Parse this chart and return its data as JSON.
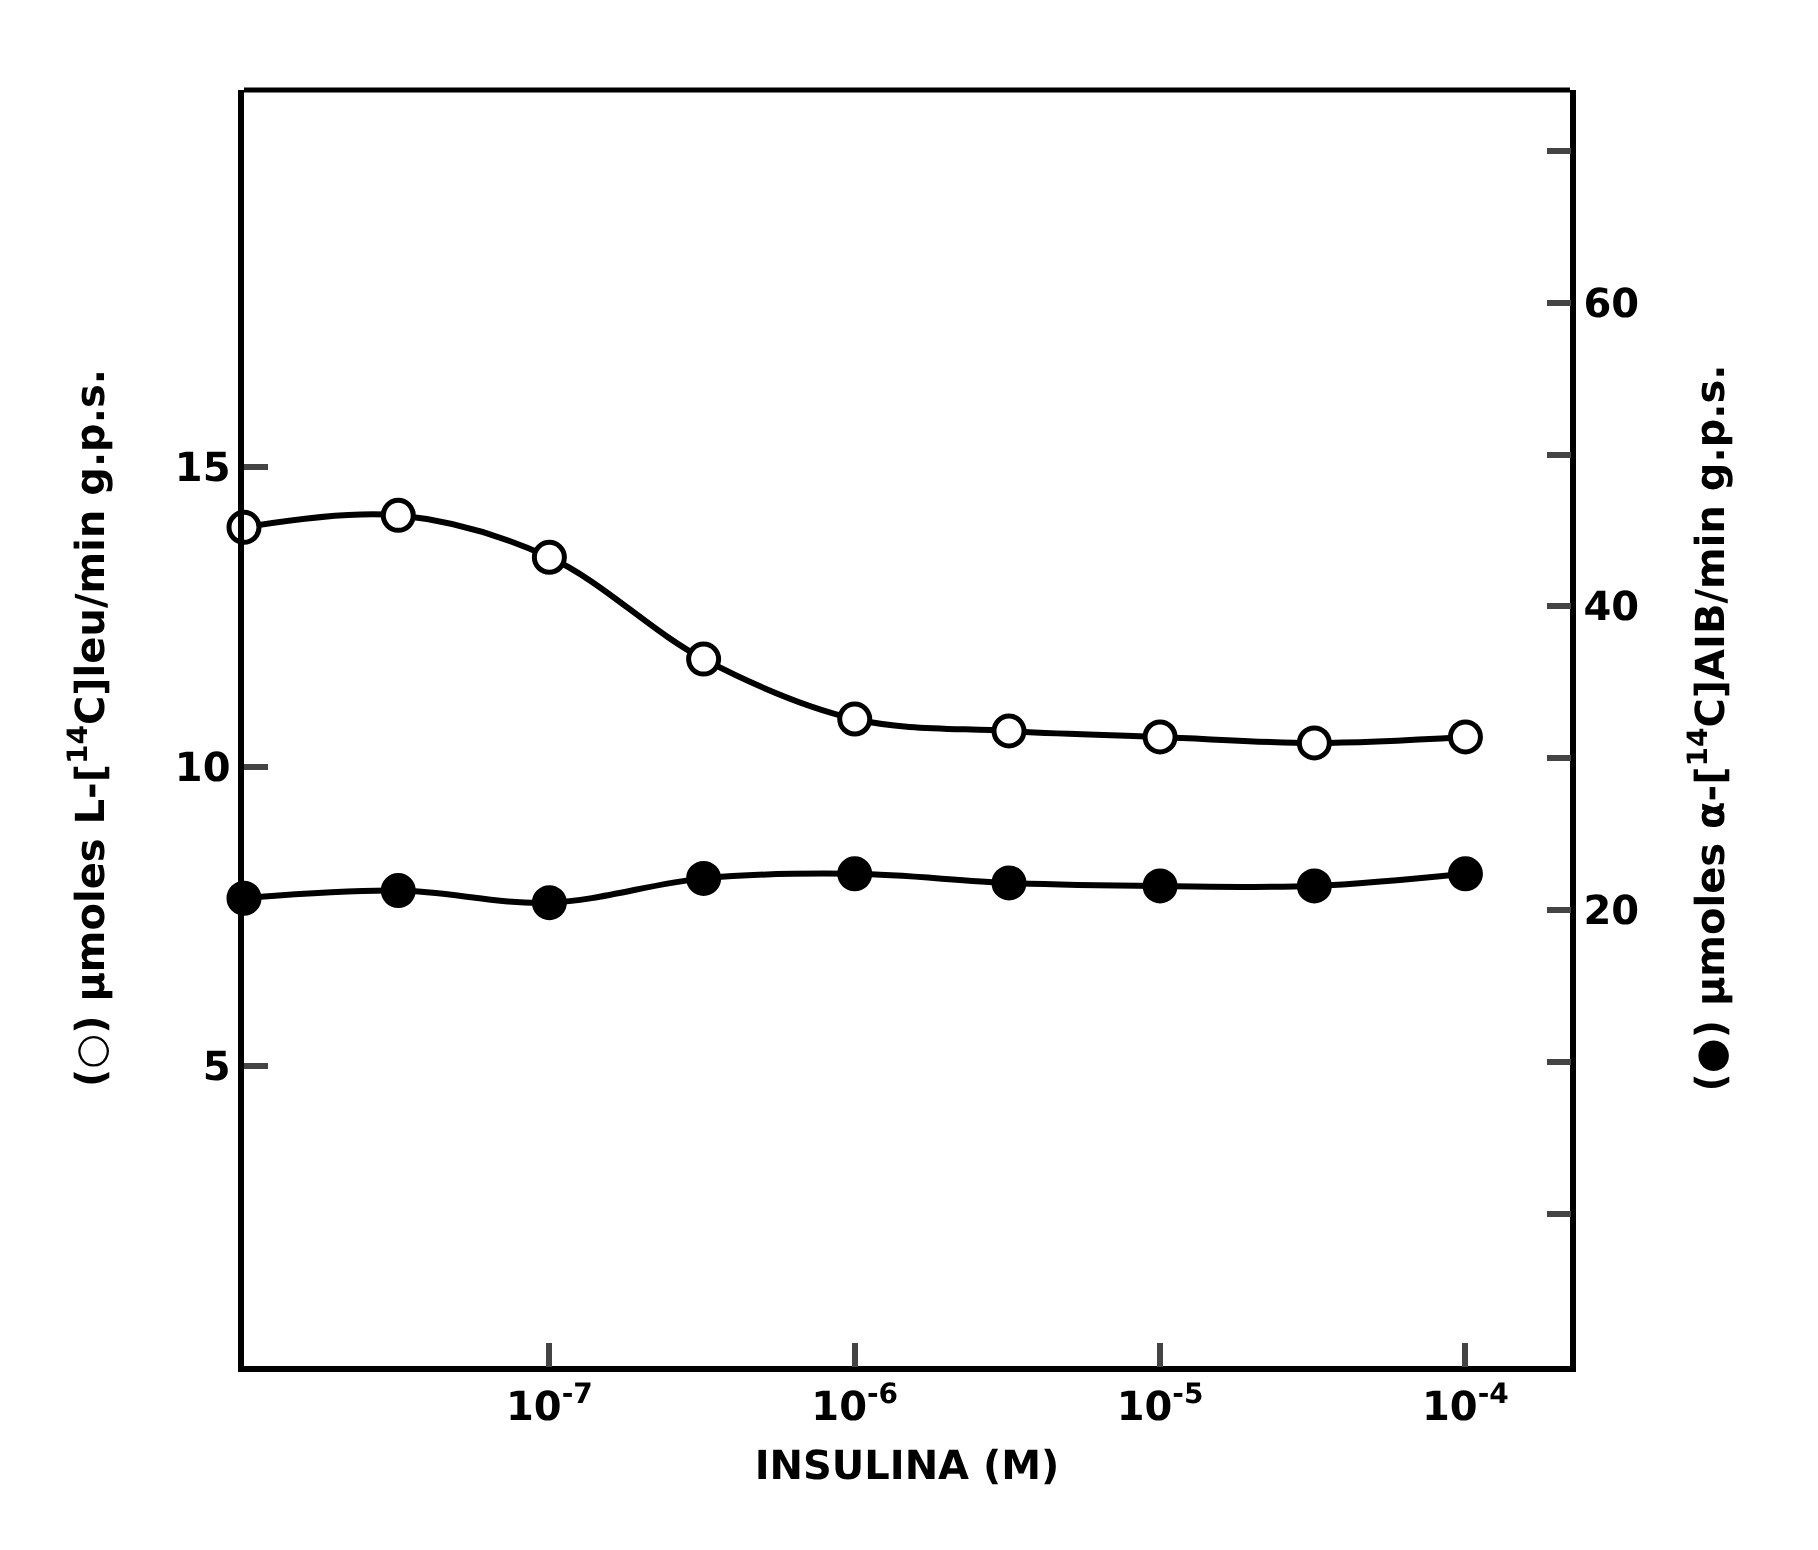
{
  "chart_data": {
    "type": "line",
    "xlabel": "INSULINA (M)",
    "ylabel": "(○) μmoles L-[$^{14}$C]leu/min g.p.s.",
    "y2label": "(●) μmoles α-[$^{14}$C]AIB/min g.p.s.",
    "x": [
      1e-08,
      3.2e-08,
      1e-07,
      3.2e-07,
      1e-06,
      3.2e-06,
      1e-05,
      3.2e-05,
      0.0001
    ],
    "series": [
      {
        "color": "#000000",
        "marker": "circle-open",
        "values": [
          14.0,
          14.2,
          13.5,
          11.8,
          10.8,
          10.6,
          10.5,
          10.4,
          10.5
        ]
      },
      {
        "color": "#000000",
        "axis": "y2",
        "values": [
          20.8,
          21.3,
          20.5,
          22.1,
          22.4,
          21.8,
          21.6,
          21.6,
          22.4
        ]
      }
    ],
    "log": "x",
    "xlim": [
      1e-08,
      0.00022
    ],
    "xticks": [
      {
        "value": 1e-07,
        "label": "10$^{-7}$"
      },
      {
        "value": 1e-06,
        "label": "10$^{-6}$"
      },
      {
        "value": 1e-05,
        "label": "10$^{-5}$"
      },
      {
        "value": 0.0001,
        "label": "10$^{-4}$"
      }
    ],
    "ylim": [
      0,
      21.3
    ],
    "yticks": [
      5,
      10,
      15
    ],
    "y2lim": [
      -10,
      74
    ],
    "y2ticks": [
      {
        "value": 0,
        "label": null
      },
      {
        "value": 10,
        "label": null
      },
      20,
      {
        "value": 30,
        "label": null
      },
      40,
      {
        "value": 50,
        "label": null
      },
      60,
      {
        "value": 70,
        "label": null
      }
    ],
    "marker": "circle"
  }
}
